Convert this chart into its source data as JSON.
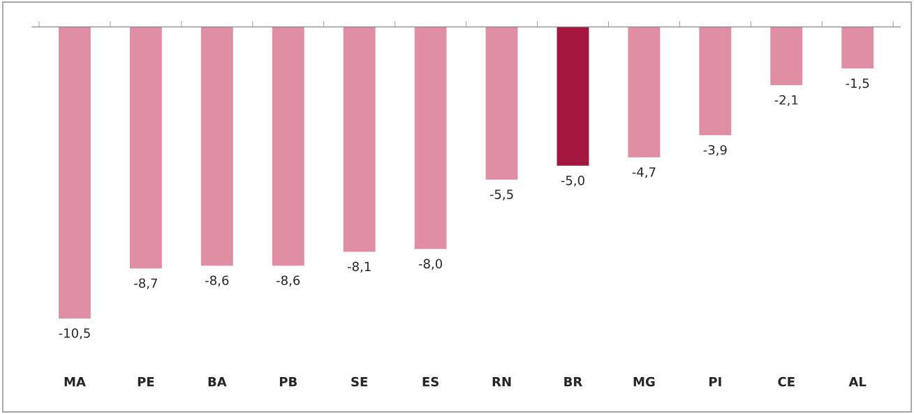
{
  "chart_data": {
    "type": "bar",
    "categories": [
      "MA",
      "PE",
      "BA",
      "PB",
      "SE",
      "ES",
      "RN",
      "BR",
      "MG",
      "PI",
      "CE",
      "AL"
    ],
    "values": [
      -10.5,
      -8.7,
      -8.6,
      -8.6,
      -8.1,
      -8.0,
      -5.5,
      -5.0,
      -4.7,
      -3.9,
      -2.1,
      -1.5
    ],
    "value_labels": [
      "-10,5",
      "-8,7",
      "-8,6",
      "-8,6",
      "-8,1",
      "-8,0",
      "-5,5",
      "-5,0",
      "-4,7",
      "-3,9",
      "-2,1",
      "-1,5"
    ],
    "colors": [
      "#e08ea3",
      "#e08ea3",
      "#e08ea3",
      "#e08ea3",
      "#e08ea3",
      "#e08ea3",
      "#e08ea3",
      "#a3173f",
      "#e08ea3",
      "#e08ea3",
      "#e08ea3",
      "#e08ea3"
    ],
    "grid": false,
    "legend": false
  }
}
